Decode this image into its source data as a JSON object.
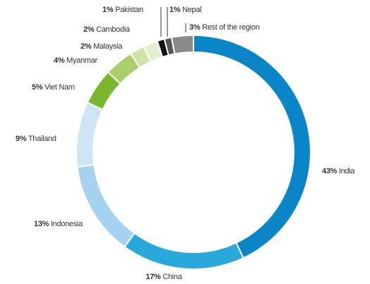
{
  "chart_data": {
    "type": "donut",
    "categories": [
      "India",
      "China",
      "Indonesia",
      "Thailand",
      "Viet Nam",
      "Myanmar",
      "Malaysia",
      "Cambodia",
      "Pakistan",
      "Nepal",
      "Rest of the region"
    ],
    "values": [
      43,
      17,
      13,
      9,
      5,
      4,
      2,
      2,
      1,
      1,
      3
    ],
    "value_labels": [
      "43%",
      "17%",
      "13%",
      "9%",
      "5%",
      "4%",
      "2%",
      "2%",
      "1%",
      "1%",
      "3%"
    ],
    "colors": [
      "#0a85c8",
      "#29a8dc",
      "#a5d2ee",
      "#cfe5f5",
      "#7cb82f",
      "#a9cf6a",
      "#cde3a8",
      "#e4efd1",
      "#111111",
      "#555555",
      "#8a8a8a"
    ]
  }
}
